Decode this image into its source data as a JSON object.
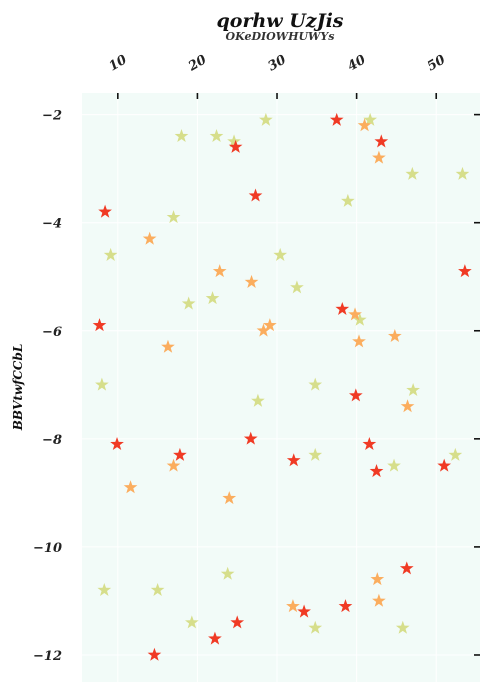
{
  "chart_data": {
    "type": "scatter",
    "title": "qorhw UzJis",
    "subtitle": "OKeDIOWHUWYs",
    "xlabel": "",
    "ylabel": "BBVtwfCCbL",
    "xlim": [
      5.5,
      55.5
    ],
    "ylim": [
      -12.5,
      -1.6
    ],
    "x_ticks": [
      10,
      20,
      30,
      40,
      50
    ],
    "y_ticks": [
      -2,
      -4,
      -6,
      -8,
      -10,
      -12
    ],
    "x_axis_position": "top",
    "grid": true,
    "marker": "star",
    "background": "#f2fbf8",
    "colors": {
      "red": "#f03a24",
      "orange": "#fbad5e",
      "olive": "#d6de8b"
    },
    "points": [
      {
        "x": 24.8,
        "y": -2.6,
        "c": "red"
      },
      {
        "x": 27.3,
        "y": -3.5,
        "c": "red"
      },
      {
        "x": 37.5,
        "y": -2.1,
        "c": "red"
      },
      {
        "x": 43.1,
        "y": -2.5,
        "c": "red"
      },
      {
        "x": 8.4,
        "y": -3.8,
        "c": "red"
      },
      {
        "x": 53.6,
        "y": -4.9,
        "c": "red"
      },
      {
        "x": 7.7,
        "y": -5.9,
        "c": "red"
      },
      {
        "x": 38.2,
        "y": -5.6,
        "c": "red"
      },
      {
        "x": 39.9,
        "y": -7.2,
        "c": "red"
      },
      {
        "x": 9.9,
        "y": -8.1,
        "c": "red"
      },
      {
        "x": 17.8,
        "y": -8.3,
        "c": "red"
      },
      {
        "x": 26.7,
        "y": -8.0,
        "c": "red"
      },
      {
        "x": 32.1,
        "y": -8.4,
        "c": "red"
      },
      {
        "x": 41.6,
        "y": -8.1,
        "c": "red"
      },
      {
        "x": 42.5,
        "y": -8.6,
        "c": "red"
      },
      {
        "x": 51.0,
        "y": -8.5,
        "c": "red"
      },
      {
        "x": 46.3,
        "y": -10.4,
        "c": "red"
      },
      {
        "x": 33.4,
        "y": -11.2,
        "c": "red"
      },
      {
        "x": 38.6,
        "y": -11.1,
        "c": "red"
      },
      {
        "x": 25.0,
        "y": -11.4,
        "c": "red"
      },
      {
        "x": 22.2,
        "y": -11.7,
        "c": "red"
      },
      {
        "x": 14.6,
        "y": -12.0,
        "c": "red"
      },
      {
        "x": 41.0,
        "y": -2.2,
        "c": "orange"
      },
      {
        "x": 42.8,
        "y": -2.8,
        "c": "orange"
      },
      {
        "x": 14.0,
        "y": -4.3,
        "c": "orange"
      },
      {
        "x": 22.8,
        "y": -4.9,
        "c": "orange"
      },
      {
        "x": 26.8,
        "y": -5.1,
        "c": "orange"
      },
      {
        "x": 39.8,
        "y": -5.7,
        "c": "orange"
      },
      {
        "x": 28.3,
        "y": -6.0,
        "c": "orange"
      },
      {
        "x": 29.1,
        "y": -5.9,
        "c": "orange"
      },
      {
        "x": 40.3,
        "y": -6.2,
        "c": "orange"
      },
      {
        "x": 44.8,
        "y": -6.1,
        "c": "orange"
      },
      {
        "x": 16.3,
        "y": -6.3,
        "c": "orange"
      },
      {
        "x": 46.4,
        "y": -7.4,
        "c": "orange"
      },
      {
        "x": 17.0,
        "y": -8.5,
        "c": "orange"
      },
      {
        "x": 11.6,
        "y": -8.9,
        "c": "orange"
      },
      {
        "x": 24.0,
        "y": -9.1,
        "c": "orange"
      },
      {
        "x": 42.6,
        "y": -10.6,
        "c": "orange"
      },
      {
        "x": 42.8,
        "y": -11.0,
        "c": "orange"
      },
      {
        "x": 32.0,
        "y": -11.1,
        "c": "orange"
      },
      {
        "x": 18.0,
        "y": -2.4,
        "c": "olive"
      },
      {
        "x": 22.4,
        "y": -2.4,
        "c": "olive"
      },
      {
        "x": 24.6,
        "y": -2.5,
        "c": "olive"
      },
      {
        "x": 28.6,
        "y": -2.1,
        "c": "olive"
      },
      {
        "x": 41.7,
        "y": -2.1,
        "c": "olive"
      },
      {
        "x": 47.0,
        "y": -3.1,
        "c": "olive"
      },
      {
        "x": 53.3,
        "y": -3.1,
        "c": "olive"
      },
      {
        "x": 17.0,
        "y": -3.9,
        "c": "olive"
      },
      {
        "x": 38.9,
        "y": -3.6,
        "c": "olive"
      },
      {
        "x": 9.1,
        "y": -4.6,
        "c": "olive"
      },
      {
        "x": 30.4,
        "y": -4.6,
        "c": "olive"
      },
      {
        "x": 18.9,
        "y": -5.5,
        "c": "olive"
      },
      {
        "x": 21.9,
        "y": -5.4,
        "c": "olive"
      },
      {
        "x": 32.5,
        "y": -5.2,
        "c": "olive"
      },
      {
        "x": 40.4,
        "y": -5.8,
        "c": "olive"
      },
      {
        "x": 8.0,
        "y": -7.0,
        "c": "olive"
      },
      {
        "x": 27.6,
        "y": -7.3,
        "c": "olive"
      },
      {
        "x": 34.8,
        "y": -7.0,
        "c": "olive"
      },
      {
        "x": 47.1,
        "y": -7.1,
        "c": "olive"
      },
      {
        "x": 34.8,
        "y": -8.3,
        "c": "olive"
      },
      {
        "x": 44.7,
        "y": -8.5,
        "c": "olive"
      },
      {
        "x": 52.4,
        "y": -8.3,
        "c": "olive"
      },
      {
        "x": 23.8,
        "y": -10.5,
        "c": "olive"
      },
      {
        "x": 8.3,
        "y": -10.8,
        "c": "olive"
      },
      {
        "x": 15.0,
        "y": -10.8,
        "c": "olive"
      },
      {
        "x": 19.3,
        "y": -11.4,
        "c": "olive"
      },
      {
        "x": 34.8,
        "y": -11.5,
        "c": "olive"
      },
      {
        "x": 45.8,
        "y": -11.5,
        "c": "olive"
      }
    ]
  }
}
